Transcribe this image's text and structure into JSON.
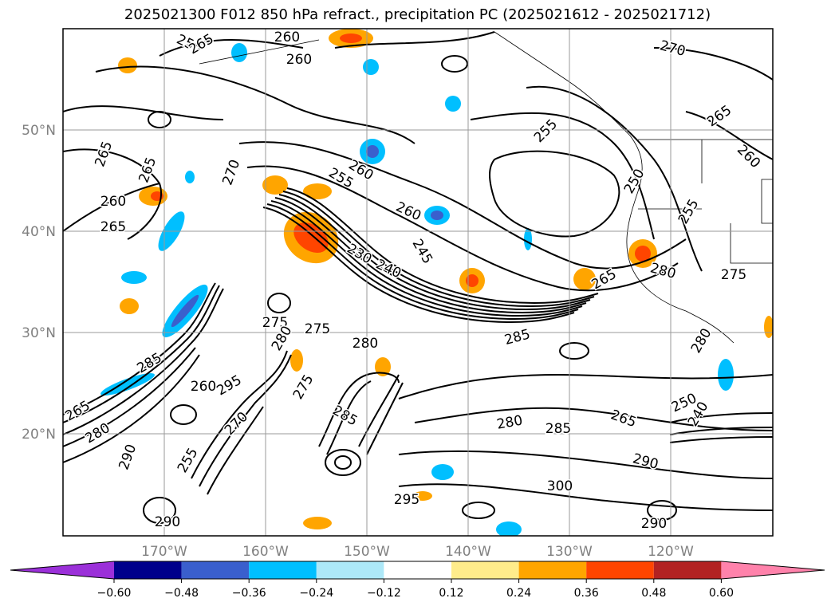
{
  "title": "2025021300 F012 850 hPa refract., precipitation PC (2025021612 - 2025021712)",
  "lat_labels": [
    "50°N",
    "40°N",
    "30°N",
    "20°N"
  ],
  "lon_labels": [
    "170°W",
    "160°W",
    "150°W",
    "140°W",
    "130°W",
    "120°W"
  ],
  "colorbar": {
    "colors": [
      "#9b30d9",
      "#00008b",
      "#3a5fcd",
      "#00bfff",
      "#ade8f8",
      "#ffffff",
      "#ffec8b",
      "#ffa500",
      "#ff4500",
      "#b22222",
      "#ff82ab"
    ],
    "tick_labels": [
      "−0.60",
      "−0.48",
      "−0.36",
      "−0.24",
      "−0.12",
      "0.12",
      "0.24",
      "0.36",
      "0.48",
      "0.60"
    ]
  },
  "contour_labels": [
    "265",
    "265",
    "260",
    "265",
    "270",
    "255",
    "260",
    "265",
    "260",
    "270",
    "265",
    "255",
    "260",
    "260",
    "250",
    "255",
    "255",
    "260",
    "265",
    "245",
    "240",
    "230",
    "275",
    "275",
    "280",
    "280",
    "285",
    "285",
    "265",
    "280",
    "295",
    "275",
    "290",
    "280",
    "285",
    "270",
    "300",
    "295",
    "290",
    "290",
    "280",
    "275",
    "265",
    "280",
    "250",
    "240",
    "260",
    "255",
    "285",
    "290"
  ]
}
